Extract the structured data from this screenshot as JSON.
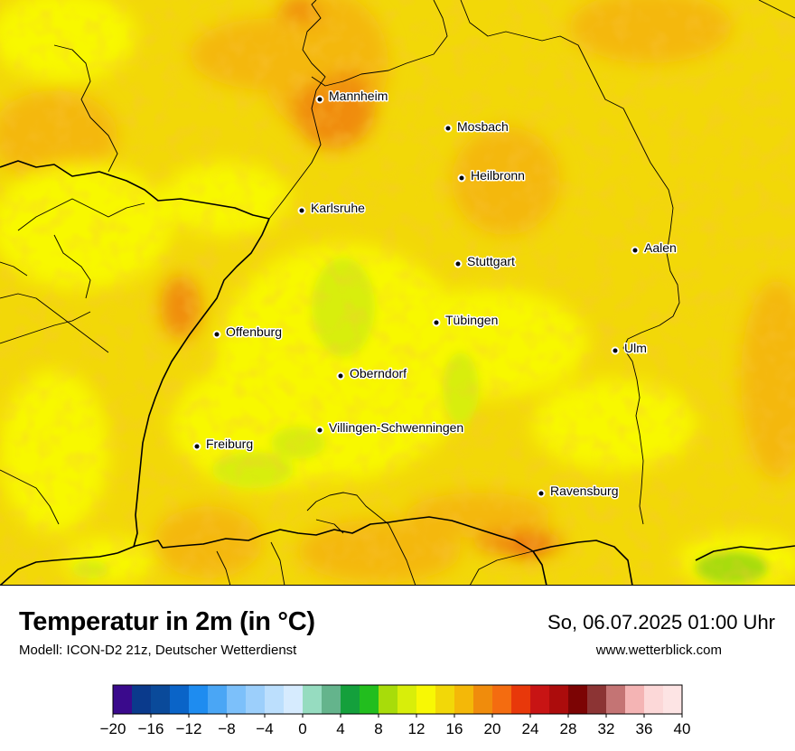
{
  "header": {
    "title": "Temperatur in 2m (in °C)",
    "subtitle": "Modell: ICON-D2 21z, Deutscher Wetterdienst",
    "datetime": "So, 06.07.2025 01:00 Uhr",
    "website": "www.wetterblick.com"
  },
  "cities": [
    {
      "name": "Mannheim"
    },
    {
      "name": "Mosbach"
    },
    {
      "name": "Heilbronn"
    },
    {
      "name": "Karlsruhe"
    },
    {
      "name": "Aalen"
    },
    {
      "name": "Stuttgart"
    },
    {
      "name": "Tübingen"
    },
    {
      "name": "Offenburg"
    },
    {
      "name": "Ulm"
    },
    {
      "name": "Oberndorf"
    },
    {
      "name": "Villingen-Schwenningen"
    },
    {
      "name": "Freiburg"
    },
    {
      "name": "Ravensburg"
    }
  ],
  "legend": {
    "min": -20,
    "max": 40,
    "step": 2,
    "tick_labels": [
      "−20",
      "−16",
      "−12",
      "−8",
      "−4",
      "0",
      "4",
      "8",
      "12",
      "16",
      "20",
      "24",
      "28",
      "32",
      "36",
      "40"
    ],
    "colors": [
      "#3a0a8c",
      "#0a3a8c",
      "#0a4a9a",
      "#0a64c8",
      "#1e8cf0",
      "#4aa6f5",
      "#7cc0fa",
      "#9ccffb",
      "#bcdffd",
      "#d6ebfe",
      "#96dcc0",
      "#64b48c",
      "#14a03c",
      "#22be1e",
      "#a8dc0a",
      "#d8ee0a",
      "#f8f804",
      "#f2d808",
      "#f4b808",
      "#f08c0c",
      "#f46c10",
      "#e8380a",
      "#c81414",
      "#ac0c0c",
      "#7c0404",
      "#8c3434",
      "#c47474",
      "#f4b4b4",
      "#fcd8d8",
      "#fde4e4"
    ]
  },
  "map_colors": {
    "base": "#f2d808",
    "warm": "#f4b808",
    "warmer": "#f08c0c",
    "hot": "#e8380a",
    "cool": "#f8f804",
    "cooler": "#d8ee0a",
    "coolest": "#a8dc0a"
  }
}
